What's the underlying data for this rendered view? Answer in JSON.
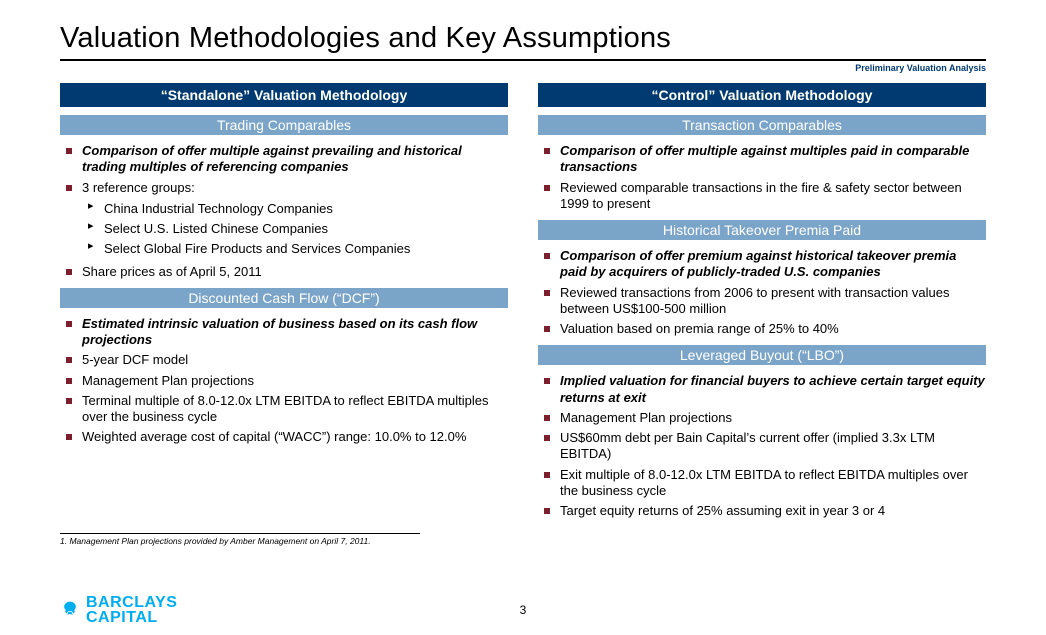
{
  "title": "Valuation Methodologies and Key Assumptions",
  "subtitle": "Preliminary Valuation Analysis",
  "left": {
    "header": "“Standalone” Valuation Methodology",
    "sections": [
      {
        "title": "Trading Comparables",
        "items": [
          {
            "text": "Comparison of offer multiple against prevailing and historical trading multiples of referencing companies",
            "lead": true
          },
          {
            "text": "3 reference groups:",
            "sub": [
              "China Industrial Technology Companies",
              "Select U.S. Listed Chinese Companies",
              "Select Global Fire Products and Services Companies"
            ]
          },
          {
            "text": "Share prices as of April 5, 2011"
          }
        ]
      },
      {
        "title": "Discounted Cash Flow (“DCF”)",
        "items": [
          {
            "text": "Estimated intrinsic valuation of business based on its cash flow projections",
            "lead": true
          },
          {
            "text": "5-year DCF model"
          },
          {
            "text": "Management Plan projections"
          },
          {
            "text": "Terminal multiple of 8.0-12.0x LTM EBITDA to reflect EBITDA multiples over the business cycle"
          },
          {
            "text": "Weighted average cost of capital (“WACC”) range: 10.0% to 12.0%"
          }
        ]
      }
    ]
  },
  "right": {
    "header": "“Control” Valuation Methodology",
    "sections": [
      {
        "title": "Transaction Comparables",
        "items": [
          {
            "text": "Comparison of offer multiple against multiples paid in comparable transactions",
            "lead": true
          },
          {
            "text": "Reviewed comparable transactions in the fire & safety sector between 1999 to present"
          }
        ]
      },
      {
        "title": "Historical Takeover Premia Paid",
        "items": [
          {
            "text": "Comparison of offer premium against historical takeover premia paid by acquirers of publicly-traded U.S. companies",
            "lead": true
          },
          {
            "text": "Reviewed transactions from 2006 to present with transaction values between US$100-500 million"
          },
          {
            "text": "Valuation based on premia range of 25% to 40%"
          }
        ]
      },
      {
        "title": "Leveraged Buyout (“LBO”)",
        "items": [
          {
            "text": "Implied valuation for financial buyers to achieve certain target equity returns at exit",
            "lead": true
          },
          {
            "text": "Management Plan projections"
          },
          {
            "text": "US$60mm debt per Bain Capital’s current offer (implied 3.3x LTM EBITDA)"
          },
          {
            "text": "Exit multiple of 8.0-12.0x LTM EBITDA to reflect EBITDA multiples over the business cycle"
          },
          {
            "text": "Target equity returns of 25% assuming exit in year 3 or 4"
          }
        ]
      }
    ]
  },
  "footnote": "1.   Management Plan projections provided by Amber Management on April 7, 2011.",
  "logo_line1": "BARCLAYS",
  "logo_line2": "CAPITAL",
  "page_number": "3",
  "colors": {
    "dark_header": "#003a70",
    "light_header": "#7ba4c9",
    "bullet": "#7a1f2b",
    "logo": "#00aeef"
  }
}
